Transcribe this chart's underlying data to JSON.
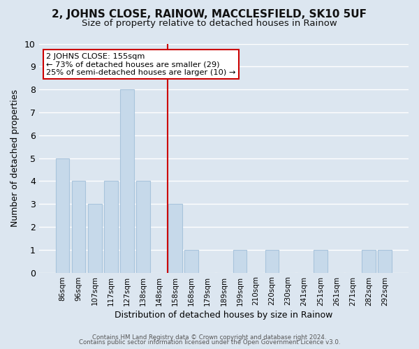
{
  "title": "2, JOHNS CLOSE, RAINOW, MACCLESFIELD, SK10 5UF",
  "subtitle": "Size of property relative to detached houses in Rainow",
  "xlabel": "Distribution of detached houses by size in Rainow",
  "ylabel": "Number of detached properties",
  "categories": [
    "86sqm",
    "96sqm",
    "107sqm",
    "117sqm",
    "127sqm",
    "138sqm",
    "148sqm",
    "158sqm",
    "168sqm",
    "179sqm",
    "189sqm",
    "199sqm",
    "210sqm",
    "220sqm",
    "230sqm",
    "241sqm",
    "251sqm",
    "261sqm",
    "271sqm",
    "282sqm",
    "292sqm"
  ],
  "values": [
    5,
    4,
    3,
    4,
    8,
    4,
    0,
    3,
    1,
    0,
    0,
    1,
    0,
    1,
    0,
    0,
    1,
    0,
    0,
    1,
    1
  ],
  "bar_color": "#c6d9ea",
  "bar_edge_color": "#a8c4dc",
  "vline_color": "#cc0000",
  "ylim": [
    0,
    10
  ],
  "yticks": [
    0,
    1,
    2,
    3,
    4,
    5,
    6,
    7,
    8,
    9,
    10
  ],
  "annotation_title": "2 JOHNS CLOSE: 155sqm",
  "annotation_line1": "← 73% of detached houses are smaller (29)",
  "annotation_line2": "25% of semi-detached houses are larger (10) →",
  "annotation_box_color": "#ffffff",
  "annotation_box_edge": "#cc0000",
  "footer1": "Contains HM Land Registry data © Crown copyright and database right 2024.",
  "footer2": "Contains public sector information licensed under the Open Government Licence v3.0.",
  "grid_color": "#ffffff",
  "bg_color": "#dce6f0",
  "plot_bg_color": "#dce6f0",
  "title_fontsize": 11,
  "subtitle_fontsize": 9.5,
  "vline_index": 6.5
}
